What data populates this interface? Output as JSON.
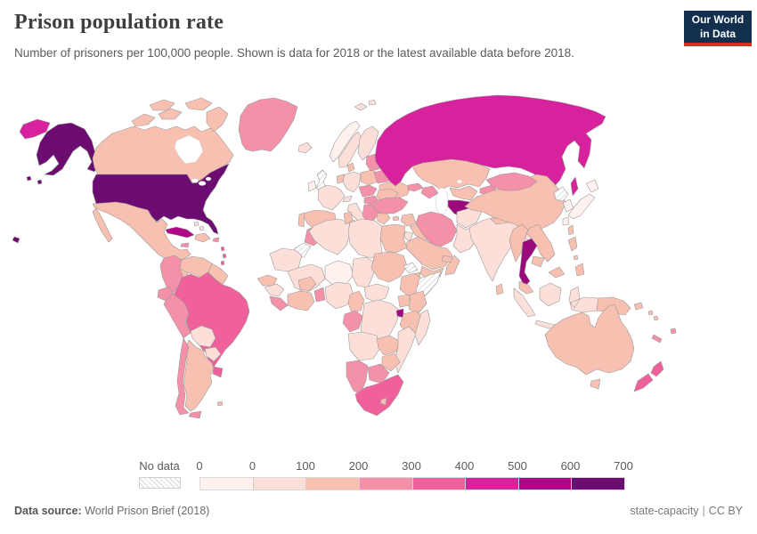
{
  "header": {
    "title": "Prison population rate",
    "subtitle": "Number of prisoners per 100,000 people. Shown is data for 2018 or the latest available data before 2018."
  },
  "logo": {
    "line1": "Our World",
    "line2": "in Data",
    "bg": "#12304e",
    "accent": "#dc2e1c"
  },
  "legend": {
    "no_data_label": "No data",
    "ticks": [
      "0",
      "0",
      "100",
      "200",
      "300",
      "400",
      "500",
      "600",
      "700"
    ],
    "bin_colors": [
      "#fef1ee",
      "#fbdfd8",
      "#f8c0b1",
      "#f590a9",
      "#f0609b",
      "#d8219c",
      "#ad0786",
      "#6d0c70"
    ]
  },
  "footer": {
    "source_label": "Data source:",
    "source_value": " World Prison Brief (2018)",
    "note": "state-capacity",
    "separator": "|",
    "license": "CC BY"
  },
  "chart_data": {
    "type": "heatmap",
    "subtype": "choropleth world map",
    "title": "Prison population rate",
    "unit": "prisoners per 100,000 people",
    "year": "2018 or latest available before 2018",
    "legend_bins": [
      {
        "range": "0",
        "color": "#fef1ee"
      },
      {
        "range": "0-100",
        "color": "#fbdfd8"
      },
      {
        "range": "100-200",
        "color": "#f8c0b1"
      },
      {
        "range": "200-300",
        "color": "#f590a9"
      },
      {
        "range": "300-400",
        "color": "#f0609b"
      },
      {
        "range": "400-500",
        "color": "#d8219c"
      },
      {
        "range": "500-600",
        "color": "#ad0786"
      },
      {
        "range": "600-700",
        "color": "#6d0c70"
      }
    ],
    "bin_range_by_color": {
      "#fef1ee": "0",
      "#fbdfd8": "0-100",
      "#f8c0b1": "100-200",
      "#f590a9": "200-300",
      "#f0609b": "300-400",
      "#d8219c": "400-500",
      "#ad0786": "500-600",
      "#b00787": "500-600",
      "#9a0a7d": "500-600",
      "#a30782": "500-600",
      "#6d0c70": "600-700"
    },
    "no_data_regions": [
      "united-kingdom",
      "north-korea",
      "western-sahara",
      "eritrea",
      "somalia"
    ],
    "highlights": {
      "usa": "600-700",
      "thailand": "500-600",
      "turkmenistan": "500-600",
      "cuba": "500-600",
      "el-salvador": "500-600",
      "rwanda": "500-600",
      "russia": "400-500",
      "brazil": "300-400",
      "south-africa": "300-400",
      "new-zealand": "300-400",
      "india": "0-100",
      "china": "100-200"
    }
  },
  "map": {
    "stroke": "#9a9a9a",
    "sea": "#ffffff",
    "hatch_line_color": "#c9c9c9",
    "regions": {
      "russia-west": "#d8219c",
      "alaska": "#6d0c70",
      "hawaii": "#6d0c70",
      "usa": "#6d0c70",
      "canada": "#f8c0b1",
      "greenland": "#f590a9",
      "iceland": "#fbdfd8",
      "mexico": "#f8c0b1",
      "guatemala": "#f590a9",
      "el-salvador": "#ad0786",
      "honduras-nicaragua": "#f8c0b1",
      "costa-rica-panama": "#f590a9",
      "cuba": "#b00787",
      "jamaica": "#f590a9",
      "hispaniola": "#f8c0b1",
      "puerto-rico": "#f590a9",
      "bahamas": "#fbdfd8",
      "lesser-antilles": "#f0609b",
      "colombia": "#f590a9",
      "venezuela": "#f8c0b1",
      "guianas": "#f8c0b1",
      "ecuador": "#f590a9",
      "peru": "#f590a9",
      "brazil": "#f0609b",
      "bolivia": "#fbdfd8",
      "paraguay": "#fbdfd8",
      "uruguay": "#f0609b",
      "argentina": "#f8c0b1",
      "chile": "#f590a9",
      "tierra-del-fuego": "#f590a9",
      "falklands": "#f8c0b1",
      "norway": "#fef1ee",
      "sweden": "#fbdfd8",
      "finland": "#fbdfd8",
      "denmark": "#f8c0b1",
      "united-kingdom": "hatch",
      "ireland": "#fef1ee",
      "benelux": "#f8c0b1",
      "germany": "#fbdfd8",
      "france": "#fbdfd8",
      "spain": "#f8c0b1",
      "portugal": "#f8c0b1",
      "italy": "#fbdfd8",
      "switzerland": "#fbdfd8",
      "austria-czech": "#f590a9",
      "poland": "#f8c0b1",
      "hungary": "#f590a9",
      "balkans": "#f590a9",
      "greece": "#f8c0b1",
      "romania": "#f8c0b1",
      "bulgaria": "#f8c0b1",
      "baltics": "#f590a9",
      "belarus": "#f590a9",
      "ukraine": "#f8c0b1",
      "svalbard": "#fbdfd8",
      "russia": "#d8219c",
      "kazakhstan": "#f8c0b1",
      "uzbekistan": "#f8c0b1",
      "turkmenistan": "#9a0a7d",
      "kyrgyzstan": "#f590a9",
      "tajikistan": "#f590a9",
      "georgia": "#f590a9",
      "azerbaijan": "#f590a9",
      "turkey": "#f590a9",
      "cyprus": "#f8c0b1",
      "syria": "#f8c0b1",
      "iraq": "#f8c0b1",
      "israel": "#f0609b",
      "jordan": "#fbdfd8",
      "saudi-arabia": "#f8c0b1",
      "yemen": "#f8c0b1",
      "oman": "#f8c0b1",
      "uae": "#f8c0b1",
      "iran": "#f590a9",
      "afghanistan": "#fbdfd8",
      "pakistan": "#fbdfd8",
      "india": "#fbdfd8",
      "nepal": "#f8c0b1",
      "bangladesh": "#fbdfd8",
      "sri-lanka": "#f8c0b1",
      "china": "#f8c0b1",
      "mongolia": "#f590a9",
      "myanmar": "#f8c0b1",
      "thailand": "#9a0a7d",
      "laos-vietnam": "#f8c0b1",
      "cambodia": "#f8c0b1",
      "malaysia": "#f8c0b1",
      "indonesia": "#fbdfd8",
      "philippines": "#f8c0b1",
      "taiwan": "#f8c0b1",
      "japan": "#fef1ee",
      "north-korea": "hatch",
      "south-korea": "#fef1ee",
      "papua-new-guinea": "#f8c0b1",
      "solomon": "#f8c0b1",
      "australia": "#f8c0b1",
      "new-zealand": "#f0609b",
      "new-caledonia": "#f590a9",
      "fiji": "#f590a9",
      "morocco": "#f590a9",
      "western-sahara": "hatch",
      "algeria": "#fbdfd8",
      "tunisia": "#f8c0b1",
      "libya": "#fbdfd8",
      "egypt": "#f8c0b1",
      "mauritania": "#fbdfd8",
      "mali": "#fbdfd8",
      "niger": "#fef1ee",
      "chad": "#fbdfd8",
      "sudan": "#f8c0b1",
      "eritrea": "hatch",
      "ethiopia": "#f8c0b1",
      "somalia": "hatch",
      "djibouti": "#f8c0b1",
      "senegal": "#f8c0b1",
      "guinea": "#fbdfd8",
      "sierra-leone-liberia": "#f590a9",
      "ivory-coast-ghana": "#f8c0b1",
      "burkina-faso": "#f8c0b1",
      "togo-benin": "#f590a9",
      "nigeria": "#fbdfd8",
      "cameroon": "#f8c0b1",
      "central-african-republic": "#fbdfd8",
      "gabon-congo": "#f590a9",
      "dr-congo": "#fbdfd8",
      "uganda": "#f8c0b1",
      "kenya": "#f8c0b1",
      "rwanda": "#a30782",
      "tanzania": "#f8c0b1",
      "angola": "#fbdfd8",
      "zambia": "#f8c0b1",
      "malawi": "#f8c0b1",
      "mozambique": "#fbdfd8",
      "zimbabwe": "#f8c0b1",
      "botswana": "#f590a9",
      "namibia": "#f590a9",
      "south-africa": "#f0609b",
      "lesotho": "#f8c0b1",
      "madagascar": "#fbdfd8"
    }
  }
}
